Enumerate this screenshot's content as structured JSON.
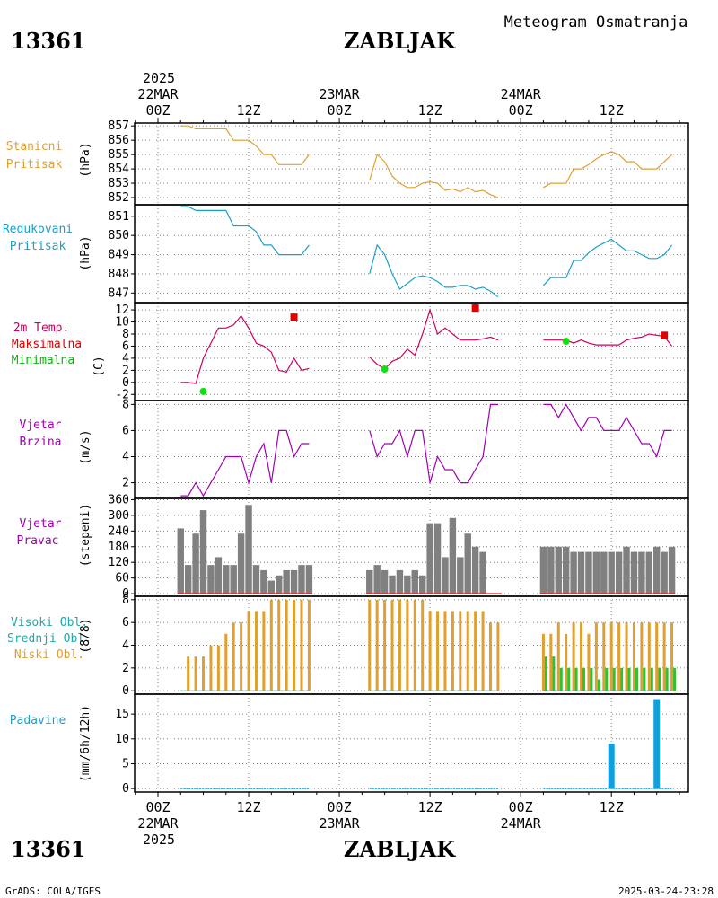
{
  "header": {
    "station_id": "13361",
    "station_name": "ZABLJAK",
    "title": "Meteogram Osmatranja",
    "year": "2025",
    "footer_left": "GrADS: COLA/IGES",
    "footer_right": "2025-03-24-23:28"
  },
  "time_axis": {
    "top_ticks": [
      {
        "t": 0,
        "l1": "22MAR",
        "l2": "00Z"
      },
      {
        "t": 12,
        "l1": "",
        "l2": "12Z"
      },
      {
        "t": 24,
        "l1": "23MAR",
        "l2": "00Z"
      },
      {
        "t": 36,
        "l1": "",
        "l2": "12Z"
      },
      {
        "t": 48,
        "l1": "24MAR",
        "l2": "00Z"
      },
      {
        "t": 60,
        "l1": "",
        "l2": "12Z"
      }
    ],
    "bottom_ticks": [
      {
        "t": 0,
        "l1": "00Z",
        "l2": "22MAR"
      },
      {
        "t": 12,
        "l1": "12Z",
        "l2": ""
      },
      {
        "t": 24,
        "l1": "00Z",
        "l2": "23MAR"
      },
      {
        "t": 36,
        "l1": "12Z",
        "l2": ""
      },
      {
        "t": 48,
        "l1": "00Z",
        "l2": "24MAR"
      },
      {
        "t": 60,
        "l1": "12Z",
        "l2": ""
      }
    ]
  },
  "panel_labels": {
    "p1": {
      "l1": "Stanicni",
      "l2": "Pritisak",
      "unit": "(hPa)",
      "c1": "#e0a030"
    },
    "p2": {
      "l1": "Redukovani",
      "l2": "Pritisak",
      "unit": "(hPa)",
      "c1": "#1aa0c8"
    },
    "p3": {
      "l1": "2m Temp.",
      "l2": "Maksimalna",
      "l3": "Minimalna",
      "unit": "(C)",
      "c1": "#cc0060",
      "c2": "#e00000",
      "c3": "#10b010"
    },
    "p4": {
      "l1": "Vjetar",
      "l2": "Brzina",
      "unit": "(m/s)",
      "c1": "#a000b0"
    },
    "p5": {
      "l1": "Vjetar",
      "l2": "Pravac",
      "unit": "(stepeni)",
      "c1": "#a000b0"
    },
    "p6": {
      "l1": "Visoki Obl.",
      "l2": "Srednji Obl.",
      "l3": "Niski Obl.",
      "unit": "(8/8)",
      "c1": "#20a8a8",
      "c2": "#20a8a8",
      "c3": "#e0a030"
    },
    "p7": {
      "l1": "Padavine",
      "unit": "(mm/6h/12h)",
      "c1": "#1aa0c8"
    }
  },
  "chart_data": [
    {
      "name": "Stanicni Pritisak",
      "type": "line",
      "unit": "(hPa)",
      "ylim": [
        851.5,
        857.2
      ],
      "yticks": [
        852,
        853,
        854,
        855,
        856,
        857
      ],
      "color": "#e0a030",
      "segments": [
        {
          "x": [
            3,
            4,
            5,
            6,
            7,
            8,
            9,
            10,
            11,
            12,
            13,
            14,
            15,
            16,
            17,
            18,
            19,
            20
          ],
          "y": [
            857,
            857,
            856.8,
            856.8,
            856.8,
            856.8,
            856.8,
            856,
            856,
            856,
            855.6,
            855,
            855,
            854.3,
            854.3,
            854.3,
            854.3,
            855
          ]
        },
        {
          "x": [
            28,
            29,
            30,
            31,
            32,
            33,
            34,
            35,
            36,
            37,
            38,
            39,
            40,
            41,
            42,
            43,
            44,
            45
          ],
          "y": [
            853.2,
            855,
            854.5,
            853.5,
            853,
            852.7,
            852.7,
            853,
            853.1,
            853,
            852.5,
            852.6,
            852.4,
            852.7,
            852.4,
            852.5,
            852.2,
            852
          ]
        },
        {
          "x": [
            51,
            52,
            53,
            54,
            55,
            56,
            57,
            58,
            59,
            60,
            61,
            62,
            63,
            64,
            65,
            66,
            67,
            68
          ],
          "y": [
            852.7,
            853,
            853,
            853,
            854,
            854,
            854.3,
            854.7,
            855,
            855.2,
            855,
            854.5,
            854.5,
            854,
            854,
            854,
            854.5,
            855
          ]
        }
      ]
    },
    {
      "name": "Redukovani Pritisak",
      "type": "line",
      "unit": "(hPa)",
      "ylim": [
        846.5,
        851.6
      ],
      "yticks": [
        847,
        848,
        849,
        850,
        851
      ],
      "color": "#1aa0c8",
      "segments": [
        {
          "x": [
            3,
            4,
            5,
            6,
            7,
            8,
            9,
            10,
            11,
            12,
            13,
            14,
            15,
            16,
            17,
            18,
            19,
            20
          ],
          "y": [
            851.5,
            851.5,
            851.3,
            851.3,
            851.3,
            851.3,
            851.3,
            850.5,
            850.5,
            850.5,
            850.2,
            849.5,
            849.5,
            849,
            849,
            849,
            849,
            849.5
          ]
        },
        {
          "x": [
            28,
            29,
            30,
            31,
            32,
            33,
            34,
            35,
            36,
            37,
            38,
            39,
            40,
            41,
            42,
            43,
            44,
            45
          ],
          "y": [
            848,
            849.5,
            849,
            848,
            847.2,
            847.5,
            847.8,
            847.9,
            847.8,
            847.6,
            847.3,
            847.3,
            847.4,
            847.4,
            847.2,
            847.3,
            847.1,
            846.8
          ]
        },
        {
          "x": [
            51,
            52,
            53,
            54,
            55,
            56,
            57,
            58,
            59,
            60,
            61,
            62,
            63,
            64,
            65,
            66,
            67,
            68
          ],
          "y": [
            847.4,
            847.8,
            847.8,
            847.8,
            848.7,
            848.7,
            849.1,
            849.4,
            849.6,
            849.8,
            849.5,
            849.2,
            849.2,
            849,
            848.8,
            848.8,
            849,
            849.5
          ]
        }
      ]
    },
    {
      "name": "2m Temp.",
      "type": "line",
      "unit": "(C)",
      "ylim": [
        -3,
        13.2
      ],
      "yticks": [
        -2,
        0,
        2,
        4,
        6,
        8,
        10,
        12
      ],
      "color": "#cc0060",
      "segments": [
        {
          "x": [
            3,
            4,
            5,
            6,
            7,
            8,
            9,
            10,
            11,
            12,
            13,
            14,
            15,
            16,
            17,
            18,
            19,
            20
          ],
          "y": [
            0,
            0,
            -0.2,
            4,
            6.5,
            9,
            9,
            9.5,
            11,
            9,
            6.5,
            6,
            5,
            2,
            1.7,
            4,
            2,
            2.3
          ]
        },
        {
          "x": [
            28,
            29,
            30,
            31,
            32,
            33,
            34,
            35,
            36,
            37,
            38,
            39,
            40,
            41,
            42,
            43,
            44,
            45
          ],
          "y": [
            4.2,
            3,
            2.2,
            3.5,
            4,
            5.5,
            4.5,
            8,
            12,
            8,
            9,
            8,
            7,
            7,
            7,
            7.2,
            7.5,
            7
          ]
        },
        {
          "x": [
            51,
            52,
            53,
            54,
            55,
            56,
            57,
            58,
            59,
            60,
            61,
            62,
            63,
            64,
            65,
            66,
            67,
            68
          ],
          "y": [
            7,
            7,
            7,
            7,
            6.5,
            7,
            6.5,
            6.2,
            6.2,
            6.2,
            6.2,
            7,
            7.3,
            7.5,
            8,
            7.8,
            7.6,
            6
          ]
        }
      ],
      "max_points": [
        {
          "x": 18,
          "y": 10.8
        },
        {
          "x": 42,
          "y": 12.3
        },
        {
          "x": 67,
          "y": 7.8
        }
      ],
      "min_points": [
        {
          "x": 6,
          "y": -1.5
        },
        {
          "x": 30,
          "y": 2.2
        },
        {
          "x": 54,
          "y": 6.8
        }
      ],
      "max_color": "#e00000",
      "min_color": "#10e010"
    },
    {
      "name": "Vjetar Brzina",
      "type": "line",
      "unit": "(m/s)",
      "ylim": [
        0.8,
        8.3
      ],
      "yticks": [
        2,
        4,
        6,
        8
      ],
      "color": "#a000b0",
      "segments": [
        {
          "x": [
            3,
            4,
            5,
            6,
            7,
            8,
            9,
            10,
            11,
            12,
            13,
            14,
            15,
            16,
            17,
            18,
            19,
            20
          ],
          "y": [
            1,
            1,
            2,
            1,
            2,
            3,
            4,
            4,
            4,
            2,
            4,
            5,
            2,
            6,
            6,
            4,
            5,
            5
          ]
        },
        {
          "x": [
            28,
            29,
            30,
            31,
            32,
            33,
            34,
            35,
            36,
            37,
            38,
            39,
            40,
            41,
            42,
            43,
            44,
            45
          ],
          "y": [
            6,
            4,
            5,
            5,
            6,
            4,
            6,
            6,
            2,
            4,
            3,
            3,
            2,
            2,
            3,
            4,
            8,
            8
          ]
        },
        {
          "x": [
            51,
            52,
            53,
            54,
            55,
            56,
            57,
            58,
            59,
            60,
            61,
            62,
            63,
            64,
            65,
            66,
            67,
            68
          ],
          "y": [
            8,
            8,
            7,
            8,
            7,
            6,
            7,
            7,
            6,
            6,
            6,
            7,
            6,
            5,
            5,
            4,
            6,
            6
          ]
        }
      ]
    },
    {
      "name": "Vjetar Pravac",
      "type": "bar",
      "unit": "(stepeni)",
      "ylim": [
        -10,
        365
      ],
      "yticks": [
        0,
        60,
        120,
        180,
        240,
        300,
        360
      ],
      "color": "#808080",
      "segments": [
        {
          "x": [
            3,
            4,
            5,
            6,
            7,
            8,
            9,
            10,
            11,
            12,
            13,
            14,
            15,
            16,
            17,
            18,
            19,
            20
          ],
          "y": [
            250,
            110,
            230,
            320,
            110,
            140,
            110,
            110,
            230,
            340,
            110,
            90,
            50,
            70,
            90,
            90,
            110,
            110
          ]
        },
        {
          "x": [
            28,
            29,
            30,
            31,
            32,
            33,
            34,
            35,
            36,
            37,
            38,
            39,
            40,
            41,
            42,
            43,
            44,
            45
          ],
          "y": [
            90,
            110,
            90,
            70,
            90,
            70,
            90,
            70,
            270,
            270,
            140,
            290,
            140,
            230,
            180,
            160,
            0,
            0
          ]
        },
        {
          "x": [
            51,
            52,
            53,
            54,
            55,
            56,
            57,
            58,
            59,
            60,
            61,
            62,
            63,
            64,
            65,
            66,
            67,
            68
          ],
          "y": [
            180,
            180,
            180,
            180,
            160,
            160,
            160,
            160,
            160,
            160,
            160,
            180,
            160,
            160,
            160,
            180,
            160,
            180
          ]
        }
      ]
    },
    {
      "name": "Oblacnost",
      "type": "bar",
      "unit": "(8/8)",
      "ylim": [
        -0.3,
        8.3
      ],
      "yticks": [
        0,
        2,
        4,
        6,
        8
      ],
      "color_low": "#e0a030",
      "color_mid": "#30c030",
      "segments": [
        {
          "x": [
            3,
            4,
            5,
            6,
            7,
            8,
            9,
            10,
            11,
            12,
            13,
            14,
            15,
            16,
            17,
            18,
            19,
            20
          ],
          "low": [
            0,
            3,
            3,
            3,
            4,
            4,
            5,
            6,
            6,
            7,
            7,
            7,
            8,
            8,
            8,
            8,
            8,
            8
          ],
          "mid": [
            0,
            0,
            0,
            0,
            0,
            0,
            0,
            0,
            0,
            0,
            0,
            0,
            0,
            0,
            0,
            0,
            0,
            0
          ]
        },
        {
          "x": [
            28,
            29,
            30,
            31,
            32,
            33,
            34,
            35,
            36,
            37,
            38,
            39,
            40,
            41,
            42,
            43,
            44,
            45
          ],
          "low": [
            8,
            8,
            8,
            8,
            8,
            8,
            8,
            8,
            7,
            7,
            7,
            7,
            7,
            7,
            7,
            7,
            6,
            6
          ],
          "mid": [
            0,
            0,
            0,
            0,
            0,
            0,
            0,
            0,
            0,
            0,
            0,
            0,
            0,
            0,
            0,
            0,
            0,
            0
          ]
        },
        {
          "x": [
            51,
            52,
            53,
            54,
            55,
            56,
            57,
            58,
            59,
            60,
            61,
            62,
            63,
            64,
            65,
            66,
            67,
            68
          ],
          "low": [
            5,
            5,
            6,
            5,
            6,
            6,
            5,
            6,
            6,
            6,
            6,
            6,
            6,
            6,
            6,
            6,
            6,
            6
          ],
          "mid": [
            3,
            3,
            2,
            2,
            2,
            2,
            2,
            1,
            2,
            2,
            2,
            2,
            2,
            2,
            2,
            2,
            2,
            2
          ]
        }
      ]
    },
    {
      "name": "Padavine",
      "type": "bar",
      "unit": "(mm/6h/12h)",
      "ylim": [
        -0.7,
        19
      ],
      "yticks": [
        0,
        5,
        10,
        15
      ],
      "color": "#10a0e0",
      "bars": [
        {
          "x": 60,
          "y": 9
        },
        {
          "x": 66,
          "y": 18
        }
      ],
      "trace_segments": [
        [
          3,
          20
        ],
        [
          28,
          45
        ],
        [
          51,
          68
        ]
      ]
    }
  ]
}
